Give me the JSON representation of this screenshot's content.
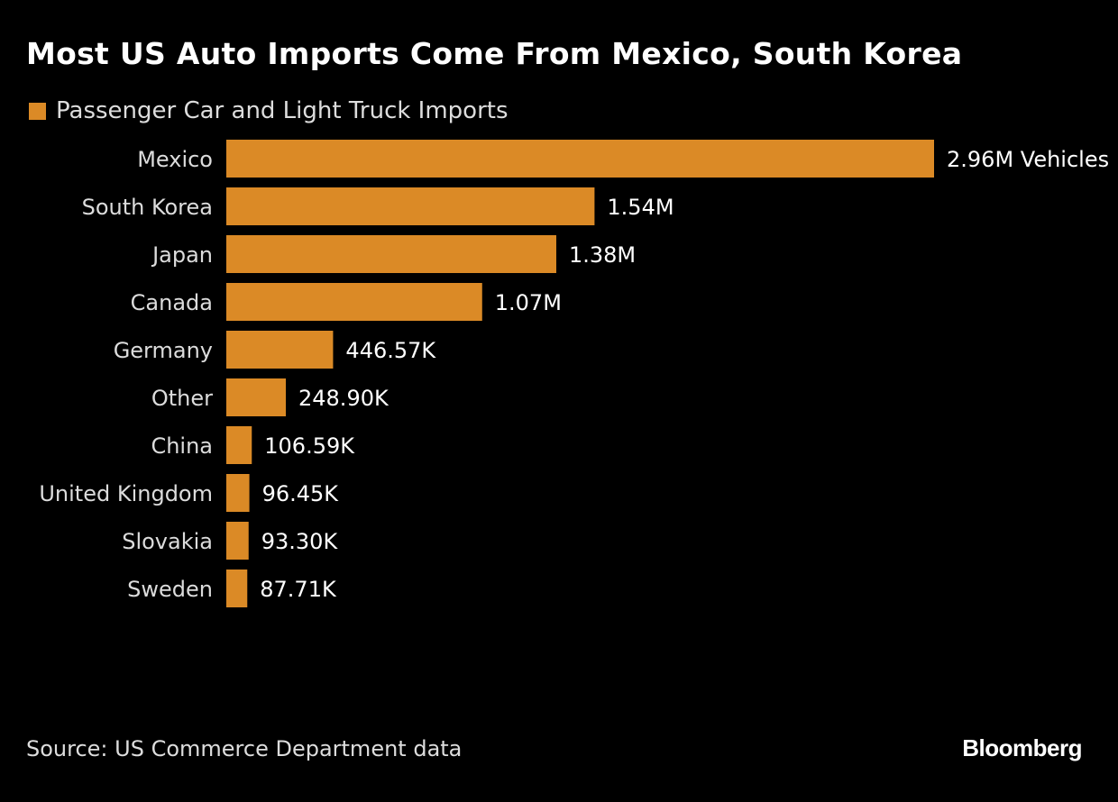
{
  "title": "Most US Auto Imports Come From Mexico, South Korea",
  "source": "Source: US Commerce Department data",
  "logo": "Bloomberg",
  "colors": {
    "bar": "#db8a26",
    "background": "#000000",
    "text": "#e6e6e6"
  },
  "chart_data": {
    "type": "bar",
    "orientation": "horizontal",
    "title": "Most US Auto Imports Come From Mexico, South Korea",
    "categories": [
      "Mexico",
      "South Korea",
      "Japan",
      "Canada",
      "Germany",
      "Other",
      "China",
      "United Kingdom",
      "Slovakia",
      "Sweden"
    ],
    "series": [
      {
        "name": "Passenger Car and Light Truck Imports",
        "values": [
          2960000,
          1540000,
          1380000,
          1070000,
          446570,
          248900,
          106590,
          96450,
          93300,
          87710
        ],
        "labels": [
          "2.96M Vehicles",
          "1.54M",
          "1.38M",
          "1.07M",
          "446.57K",
          "248.90K",
          "106.59K",
          "96.45K",
          "93.30K",
          "87.71K"
        ]
      }
    ],
    "xlim": [
      0,
      2960000
    ],
    "grid": false,
    "legend": "top-left"
  }
}
